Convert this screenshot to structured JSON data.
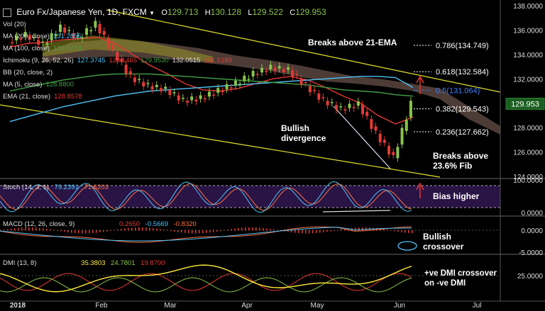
{
  "header": {
    "symbol": "Euro Fx/Japanese Yen, 1D, FXCM",
    "open_label": "O",
    "open": "129.713",
    "high_label": "H",
    "high": "130.128",
    "low_label": "L",
    "low": "129.522",
    "close_label": "C",
    "close": "129.953"
  },
  "indicators": [
    {
      "label": "Vol (20)",
      "values": [],
      "color": "#ddd"
    },
    {
      "label": "MA (200, close)",
      "values": [
        "131.2855"
      ],
      "colors": [
        "#4fc3f7"
      ]
    },
    {
      "label": "MA (100, close)",
      "values": [
        "130.5773"
      ],
      "colors": [
        "#43a047"
      ]
    },
    {
      "label": "Ichimoku (9, 26, 52, 26)",
      "values": [
        "127.3745",
        "128.1465",
        "129.9530",
        "132.0515",
        "131.5189"
      ],
      "colors": [
        "#4fc3f7",
        "#e53935",
        "#43a047",
        "#e0e0e0",
        "#e53935"
      ]
    },
    {
      "label": "BB (20, close, 2)",
      "values": [],
      "colors": []
    },
    {
      "label": "MA (5, close)",
      "values": [
        "128.8800"
      ],
      "colors": [
        "#43a047"
      ]
    },
    {
      "label": "EMA (21, close)",
      "values": [
        "128.8578"
      ],
      "colors": [
        "#e53935"
      ]
    }
  ],
  "price_axis": [
    "138.0000",
    "136.0000",
    "134.0000",
    "132.0000",
    "130.0000",
    "128.0000",
    "126.0000",
    "124.0000"
  ],
  "last_price_tag": "129.953",
  "time_axis": [
    "2018",
    "Feb",
    "Mar",
    "Apr",
    "May",
    "Jun",
    "Jul"
  ],
  "fib_levels": [
    {
      "label": "0.786(134.749)",
      "value": 134.749,
      "color": "#ffffff"
    },
    {
      "label": "0.618(132.584)",
      "value": 132.584,
      "color": "#ffffff"
    },
    {
      "label": "0.5(131.064)",
      "value": 131.064,
      "color": "#3f7fff"
    },
    {
      "label": "0.382(129.543)",
      "value": 129.543,
      "color": "#ffffff"
    },
    {
      "label": "0.236(127.662)",
      "value": 127.662,
      "color": "#ffffff"
    }
  ],
  "annotations": {
    "breaks_ema": "Breaks above 21-EMA",
    "bullish_div_1": "Bullish",
    "bullish_div_2": "divergence",
    "breaks_fib_1": "Breaks above",
    "breaks_fib_2": "23.6% Fib",
    "bias_higher": "Bias higher",
    "macd_cross_1": "Bullish",
    "macd_cross_2": "crossover",
    "dmi_cross_1": "+ve DMI crossover",
    "dmi_cross_2": "on -ve DMI"
  },
  "stoch": {
    "label": "Stoch (14, 3, 1)",
    "v1": "79.2391",
    "v2": "71.6203",
    "axis": [
      "100.0000",
      "0.0000"
    ]
  },
  "macd": {
    "label": "MACD (12, 26, close, 9)",
    "v1": "0.2650",
    "v2": "-0.5669",
    "v3": "-0.8320",
    "axis": [
      "0.0000",
      "-5.0000"
    ]
  },
  "dmi": {
    "label": "DMI (13, 8)",
    "v1": "35.3803",
    "v2": "24.7801",
    "v3": "19.8700",
    "axis": [
      "25.0000"
    ]
  },
  "chart_data": {
    "type": "line",
    "title": "Euro Fx/Japanese Yen, 1D, FXCM",
    "xlabel": "",
    "ylabel": "",
    "ylim": [
      124,
      138
    ],
    "x": [
      "Jan",
      "Jan",
      "Jan",
      "Jan",
      "Jan",
      "Feb",
      "Feb",
      "Feb",
      "Feb",
      "Mar",
      "Mar",
      "Mar",
      "Mar",
      "Apr",
      "Apr",
      "Apr",
      "Apr",
      "May",
      "May",
      "May",
      "May",
      "May",
      "May",
      "Jun"
    ],
    "series": [
      {
        "name": "Close",
        "values": [
          135.0,
          135.6,
          134.8,
          136.2,
          135.3,
          136.5,
          134.2,
          132.1,
          131.4,
          131.1,
          130.2,
          130.4,
          131.0,
          131.6,
          132.4,
          132.9,
          132.7,
          131.4,
          130.2,
          129.5,
          129.9,
          127.5,
          125.5,
          129.95
        ]
      },
      {
        "name": "EMA (21, close)",
        "values": [
          134.6,
          134.9,
          135.0,
          135.2,
          135.3,
          135.4,
          134.9,
          134.0,
          133.1,
          132.4,
          131.6,
          131.1,
          131.0,
          131.2,
          131.6,
          132.0,
          132.2,
          131.9,
          131.3,
          130.6,
          130.0,
          129.0,
          128.3,
          128.86
        ]
      },
      {
        "name": "MA (200, close)",
        "values": [
          128.5,
          128.9,
          129.3,
          129.7,
          130.0,
          130.3,
          130.6,
          130.8,
          131.0,
          131.1,
          131.2,
          131.3,
          131.4,
          131.5,
          131.6,
          131.7,
          131.8,
          131.9,
          132.0,
          132.1,
          132.2,
          132.2,
          132.1,
          131.29
        ]
      },
      {
        "name": "MA (100, close)",
        "values": [
          131.0,
          131.3,
          131.6,
          131.9,
          132.1,
          132.3,
          132.4,
          132.4,
          132.4,
          132.3,
          132.2,
          132.1,
          132.0,
          131.9,
          131.8,
          131.7,
          131.6,
          131.5,
          131.3,
          131.1,
          131.0,
          130.9,
          130.7,
          130.58
        ]
      }
    ]
  }
}
